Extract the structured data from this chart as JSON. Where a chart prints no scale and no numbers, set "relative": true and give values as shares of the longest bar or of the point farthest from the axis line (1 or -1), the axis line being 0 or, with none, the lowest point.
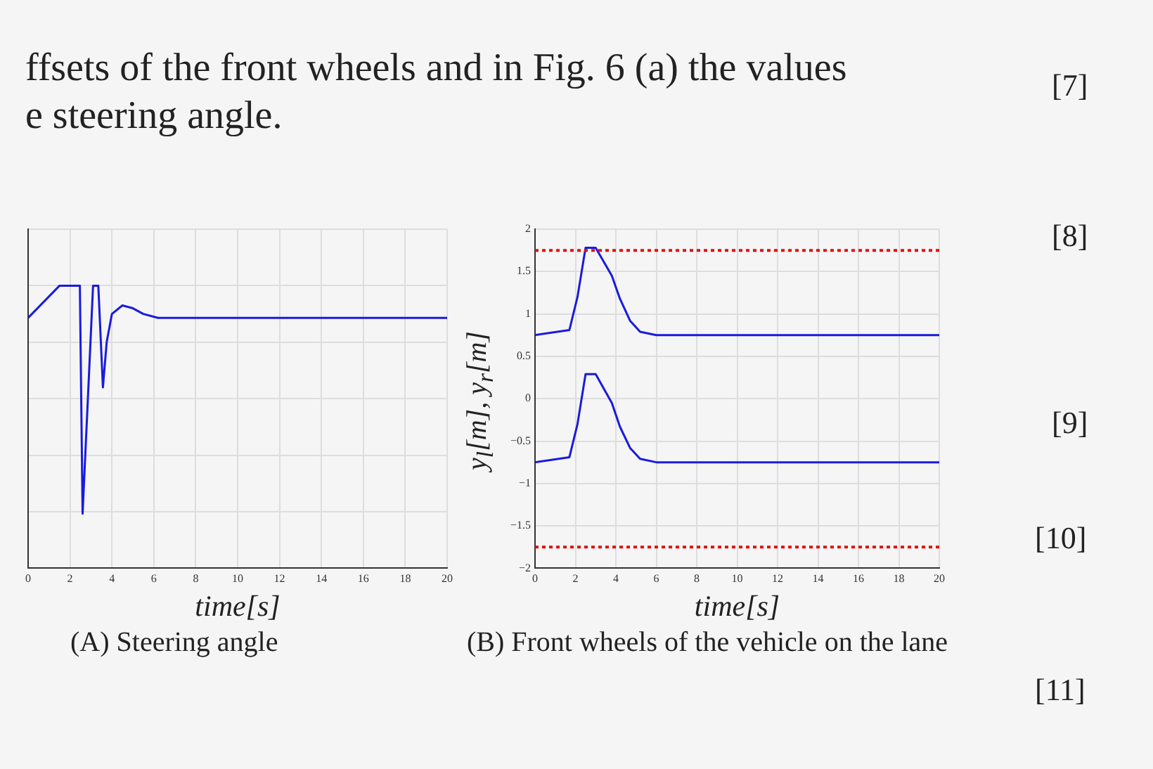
{
  "chart_data": [
    {
      "type": "line",
      "relative": true,
      "annotations": [
        "(A) Steering angle",
        "ffsets of the front wheels and in Fig. 6 (a) the values",
        "e steering angle."
      ],
      "xlabel": "time[s]",
      "x": [
        0,
        1.5,
        2.47,
        2.6,
        3.1,
        3.35,
        3.57,
        3.75,
        4.0,
        4.5,
        5.0,
        5.5,
        6.2,
        20
      ],
      "xlim": [
        0,
        20
      ],
      "xticks": [
        0,
        2,
        4,
        6,
        8,
        10,
        12,
        14,
        16,
        18,
        20
      ],
      "grid": true,
      "marker": "none",
      "legend": false,
      "series": [
        {
          "color": "#1a1adf",
          "values": [
            0.886,
            1,
            1,
            0.193,
            1,
            1,
            0.64,
            0.8,
            0.9,
            0.93,
            0.92,
            0.9,
            0.886,
            0.886
          ]
        }
      ]
    },
    {
      "type": "line",
      "annotations": [
        "(B) Front wheels of the vehicle on the lane",
        "[7]",
        "[8]",
        "[9]",
        "[10]",
        "[11]"
      ],
      "xlabel": "time[s]",
      "ylabel": "y$_{l}$[m], y$_{r}$[m]",
      "x": [
        0,
        1.7,
        2.1,
        2.5,
        3.0,
        3.8,
        4.2,
        4.7,
        5.2,
        6,
        20
      ],
      "xlim": [
        0,
        20
      ],
      "xticks": [
        0,
        2,
        4,
        6,
        8,
        10,
        12,
        14,
        16,
        18,
        20
      ],
      "ylim": [
        -2,
        2
      ],
      "yticks": [
        {
          "value": -2,
          "label": "−2"
        },
        {
          "value": -1.5,
          "label": "−1.5"
        },
        {
          "value": -1,
          "label": "−1"
        },
        {
          "value": -0.5,
          "label": "−0.5"
        },
        0,
        0.5,
        1,
        1.5,
        2
      ],
      "grid": true,
      "marker": "none",
      "legend": false,
      "series": [
        {
          "color": "#1a1adf",
          "values": [
            0.75,
            0.81,
            1.2,
            1.78,
            1.78,
            1.45,
            1.18,
            0.92,
            0.79,
            0.75,
            0.75
          ]
        },
        {
          "color": "#1a1adf",
          "values": [
            -0.75,
            -0.69,
            -0.3,
            0.29,
            0.29,
            -0.05,
            -0.33,
            -0.58,
            -0.71,
            -0.75,
            -0.75
          ]
        }
      ],
      "ref_lines": [
        {
          "axis": "y",
          "value": 1.75,
          "color": "#e01010",
          "line_style": "dotted"
        },
        {
          "axis": "y",
          "value": -1.75,
          "color": "#e01010",
          "line_style": "dotted"
        }
      ]
    }
  ]
}
